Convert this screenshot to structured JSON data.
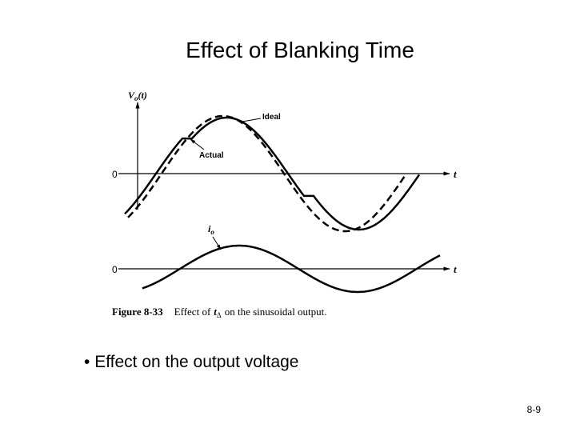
{
  "header": {
    "title": "Effect of Blanking Time"
  },
  "figure": {
    "voltage_axis_label": {
      "main": "V",
      "sub": "o",
      "rest": "(t)"
    },
    "ideal_label": "Ideal",
    "actual_label": "Actual",
    "voltage_zero": "0",
    "voltage_time": "t",
    "current_label": {
      "main": "i",
      "sub": "o"
    },
    "current_zero": "0",
    "current_time": "t",
    "caption": {
      "number": "Figure 8-33",
      "text_before": "Effect of",
      "symbol": "t",
      "symbol_sub": "Δ",
      "text_after": "on the sinusoidal output."
    }
  },
  "bullets": [
    "Effect on the output voltage"
  ],
  "footer": {
    "page": "8-9"
  }
}
